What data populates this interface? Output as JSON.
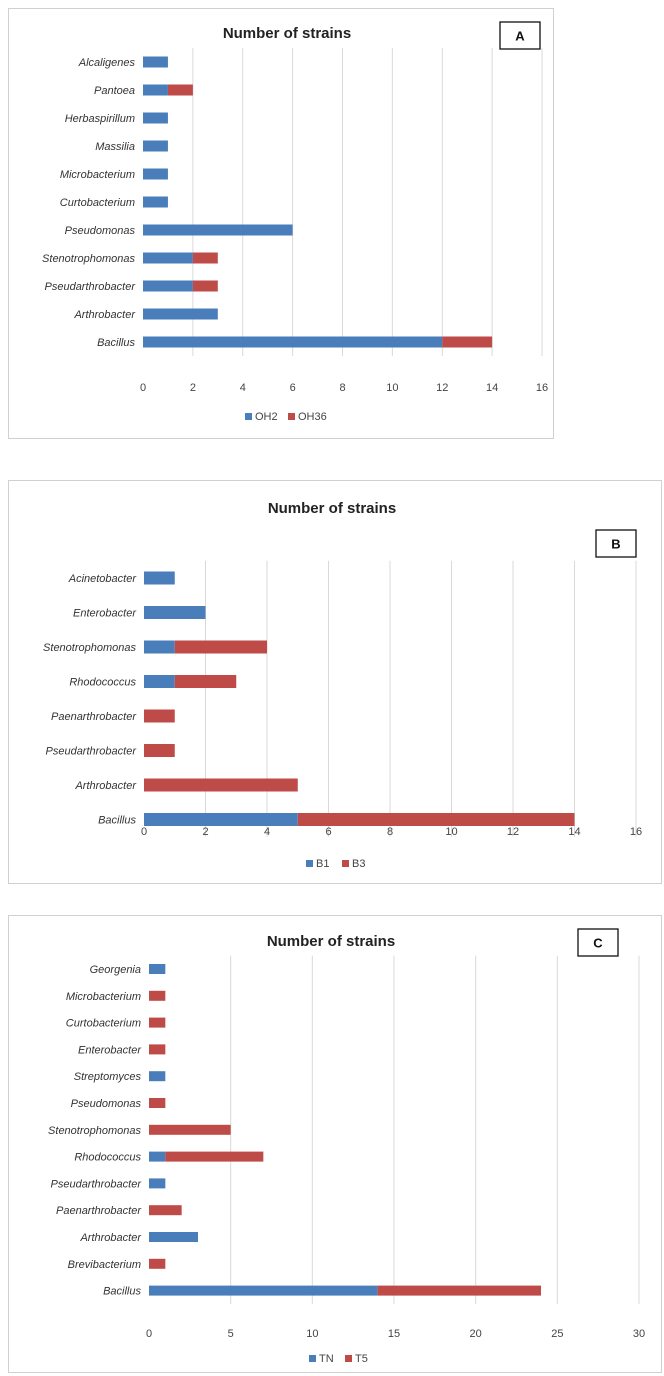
{
  "colors": {
    "series1": "#4a7ebb",
    "series2": "#be4b48",
    "grid": "#d9d9d9"
  },
  "chart_data": [
    {
      "panel_label": "A",
      "type": "bar",
      "orientation": "horizontal",
      "stacked": true,
      "title": "Number of strains",
      "categories": [
        "Alcaligenes",
        "Pantoea",
        "Herbaspirillum",
        "Massilia",
        "Microbacterium",
        "Curtobacterium",
        "Pseudomonas",
        "Stenotrophomonas",
        "Pseudarthrobacter",
        "Arthrobacter",
        "Bacillus"
      ],
      "series": [
        {
          "name": "OH2",
          "values": [
            1,
            1,
            1,
            1,
            1,
            1,
            6,
            2,
            2,
            3,
            12
          ]
        },
        {
          "name": "OH36",
          "values": [
            0,
            1,
            0,
            0,
            0,
            0,
            0,
            1,
            1,
            0,
            2
          ]
        }
      ],
      "xlim": [
        0,
        16
      ],
      "xticks": [
        0,
        2,
        4,
        6,
        8,
        10,
        12,
        14,
        16
      ],
      "grid": true,
      "legend": "bottom"
    },
    {
      "panel_label": "B",
      "type": "bar",
      "orientation": "horizontal",
      "stacked": true,
      "title": "Number of strains",
      "categories": [
        "Acinetobacter",
        "Enterobacter",
        "Stenotrophomonas",
        "Rhodococcus",
        "Paenarthrobacter",
        "Pseudarthrobacter",
        "Arthrobacter",
        "Bacillus"
      ],
      "series": [
        {
          "name": "B1",
          "values": [
            1,
            2,
            1,
            1,
            0,
            0,
            0,
            5
          ]
        },
        {
          "name": "B3",
          "values": [
            0,
            0,
            3,
            2,
            1,
            1,
            5,
            9
          ]
        }
      ],
      "xlim": [
        0,
        16
      ],
      "xticks": [
        0,
        2,
        4,
        6,
        8,
        10,
        12,
        14,
        16
      ],
      "grid": true,
      "legend": "bottom"
    },
    {
      "panel_label": "C",
      "type": "bar",
      "orientation": "horizontal",
      "stacked": true,
      "title": "Number of strains",
      "categories": [
        "Georgenia",
        "Microbacterium",
        "Curtobacterium",
        "Enterobacter",
        "Streptomyces",
        "Pseudomonas",
        "Stenotrophomonas",
        "Rhodococcus",
        "Pseudarthrobacter",
        "Paenarthrobacter",
        "Arthrobacter",
        "Brevibacterium",
        "Bacillus"
      ],
      "series": [
        {
          "name": "TN",
          "values": [
            1,
            0,
            0,
            0,
            1,
            0,
            0,
            1,
            1,
            0,
            3,
            0,
            14
          ]
        },
        {
          "name": "T5",
          "values": [
            0,
            1,
            1,
            1,
            0,
            1,
            5,
            6,
            0,
            2,
            0,
            1,
            10
          ]
        }
      ],
      "xlim": [
        0,
        30
      ],
      "xticks": [
        0,
        5,
        10,
        15,
        20,
        25,
        30
      ],
      "grid": true,
      "legend": "bottom"
    }
  ]
}
